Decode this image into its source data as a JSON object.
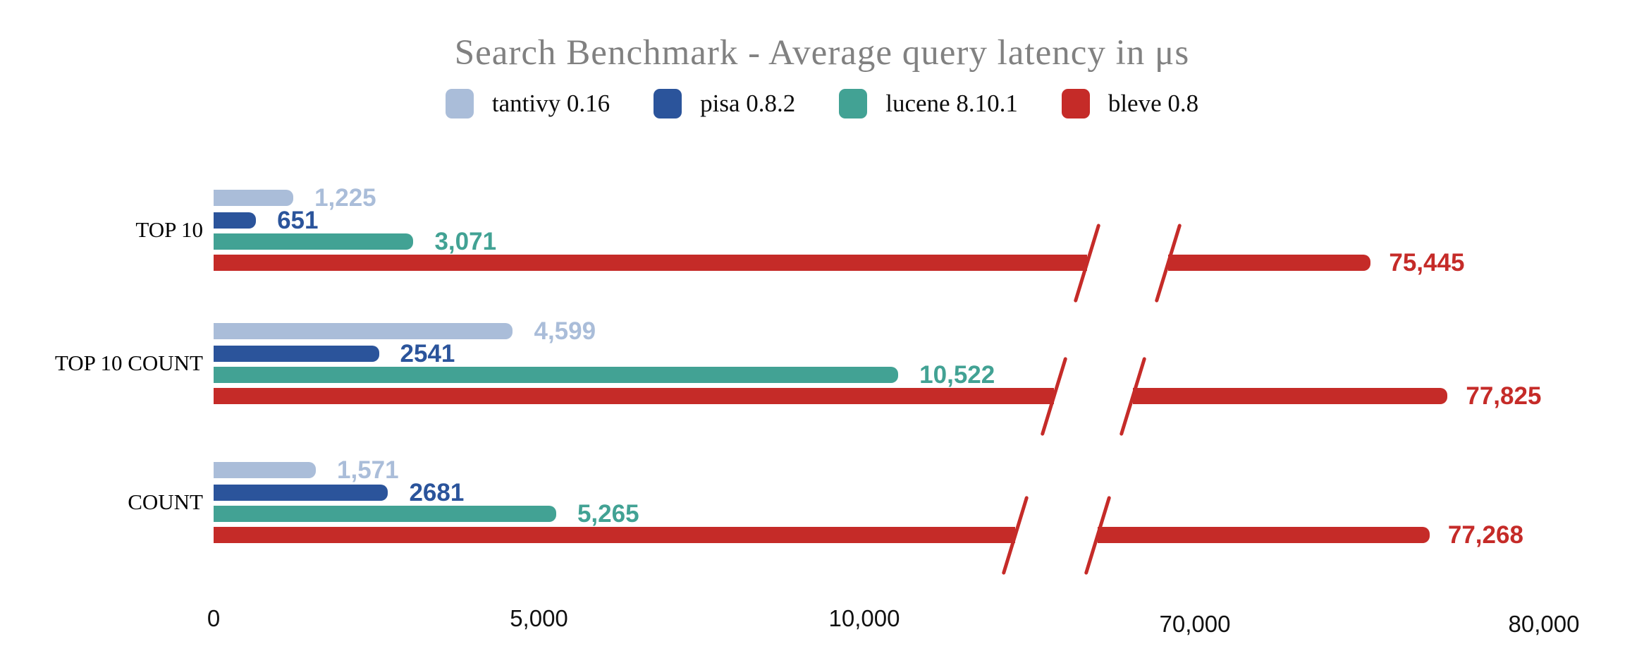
{
  "chart_data": {
    "type": "bar",
    "orientation": "horizontal",
    "title": "Search Benchmark - Average query latency in μs",
    "unit": "μs",
    "categories": [
      "TOP 10",
      "TOP 10 COUNT",
      "COUNT"
    ],
    "series": [
      {
        "name": "tantivy 0.16",
        "color": "#aabdd9",
        "values": [
          1225,
          4599,
          1571
        ],
        "value_labels": [
          "1,225",
          "4,599",
          "1,571"
        ]
      },
      {
        "name": "pisa 0.8.2",
        "color": "#2b549b",
        "values": [
          651,
          2541,
          2681
        ],
        "value_labels": [
          "651",
          "2541",
          "2681"
        ]
      },
      {
        "name": "lucene 8.10.1",
        "color": "#42a294",
        "values": [
          3071,
          10522,
          5265
        ],
        "value_labels": [
          "3,071",
          "10,522",
          "5,265"
        ]
      },
      {
        "name": "bleve 0.8",
        "color": "#c52b28",
        "values": [
          75445,
          77825,
          77268
        ],
        "value_labels": [
          "75,445",
          "77,825",
          "77,268"
        ]
      }
    ],
    "x_axis": {
      "ticks": [
        {
          "value": 0,
          "label": "0"
        },
        {
          "value": 5000,
          "label": "5,000"
        },
        {
          "value": 10000,
          "label": "10,000"
        },
        {
          "value": 70000,
          "label": "70,000"
        },
        {
          "value": 80000,
          "label": "80,000"
        }
      ],
      "has_break": true,
      "break_between": [
        10000,
        70000
      ]
    },
    "legend_position": "top",
    "grid": false,
    "background": "#ffffff",
    "title_color": "#818181"
  }
}
